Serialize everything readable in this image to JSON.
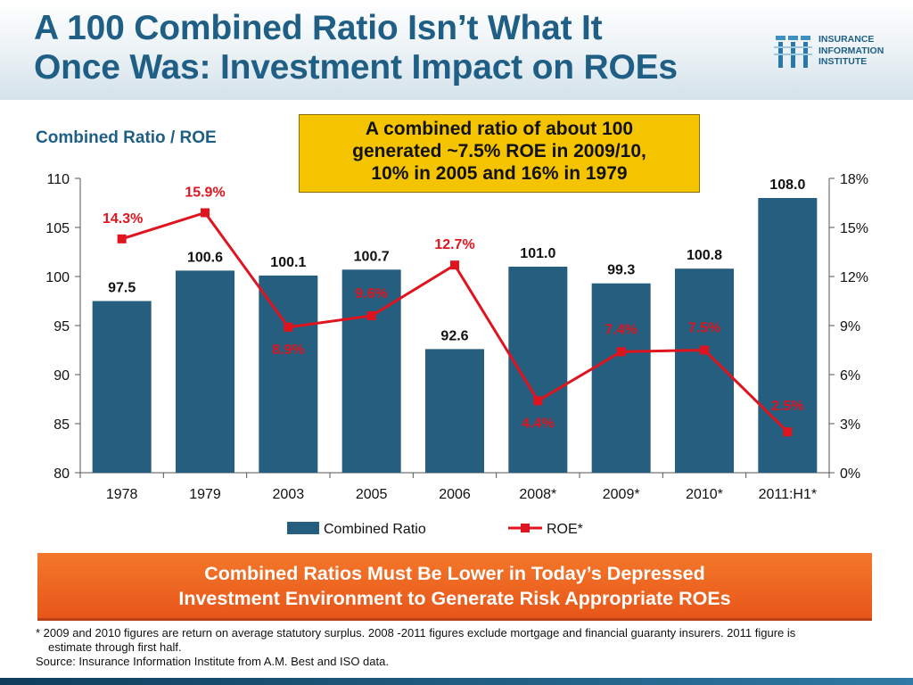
{
  "header": {
    "title_line1": "A 100 Combined Ratio Isn’t What It",
    "title_line2": "Once Was: Investment Impact on ROEs",
    "logo_lines": [
      "INSURANCE",
      "INFORMATION",
      "INSTITUTE"
    ],
    "logo_icon": "iii-logo-icon"
  },
  "subtitle": "Combined Ratio / ROE",
  "callout": {
    "line1": "A combined ratio of about 100",
    "line2": "generated ~7.5% ROE in 2009/10,",
    "line3": "10% in 2005 and 16% in 1979"
  },
  "chart_data": {
    "type": "bar",
    "categories": [
      "1978",
      "1979",
      "2003",
      "2005",
      "2006",
      "2008*",
      "2009*",
      "2010*",
      "2011:H1*"
    ],
    "series": [
      {
        "name": "Combined Ratio",
        "type": "bar",
        "axis": "left",
        "values": [
          97.5,
          100.6,
          100.1,
          100.7,
          92.6,
          101.0,
          99.3,
          100.8,
          108.0
        ],
        "labels": [
          "97.5",
          "100.6",
          "100.1",
          "100.7",
          "92.6",
          "101.0",
          "99.3",
          "100.8",
          "108.0"
        ],
        "color": "#255e7f"
      },
      {
        "name": "ROE*",
        "type": "line",
        "axis": "right",
        "values": [
          14.3,
          15.9,
          8.9,
          9.6,
          12.7,
          4.4,
          7.4,
          7.5,
          2.5
        ],
        "labels": [
          "14.3%",
          "15.9%",
          "8.9%",
          "9.6%",
          "12.7%",
          "4.4%",
          "7.4%",
          "7.5%",
          "2.5%"
        ],
        "color": "#e0141e"
      }
    ],
    "left_axis": {
      "min": 80,
      "max": 110,
      "ticks": [
        "80",
        "85",
        "90",
        "95",
        "100",
        "105",
        "110"
      ]
    },
    "right_axis": {
      "min": 0,
      "max": 18,
      "ticks": [
        "0%",
        "3%",
        "6%",
        "9%",
        "12%",
        "15%",
        "18%"
      ]
    },
    "grid": false,
    "legend_position": "bottom"
  },
  "banner": {
    "line1": "Combined Ratios Must Be Lower in Today’s Depressed",
    "line2": "Investment Environment to Generate Risk Appropriate ROEs"
  },
  "footnotes": {
    "note1": "* 2009 and 2010 figures are return on average statutory surplus.  2008 -2011 figures exclude mortgage and financial guaranty insurers. 2011 figure is estimate through first half.",
    "source": "Source: Insurance Information Institute from A.M. Best and ISO data."
  },
  "colors": {
    "title": "#1f5f86",
    "bar": "#255e7f",
    "roe_line": "#e0141e",
    "callout_bg": "#f5c400",
    "banner_bg": "#ec621f"
  }
}
